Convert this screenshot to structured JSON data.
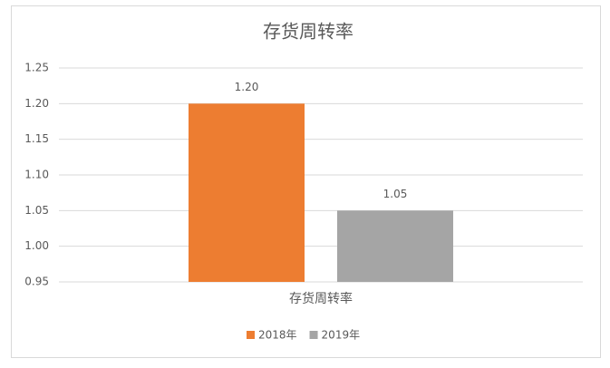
{
  "chart_data": {
    "type": "bar",
    "title": "存货周转率",
    "categories": [
      "存货周转率"
    ],
    "series": [
      {
        "name": "2018年",
        "color": "#ED7D31",
        "values": [
          1.2
        ],
        "value_labels": [
          "1.20"
        ]
      },
      {
        "name": "2019年",
        "color": "#A5A5A5",
        "values": [
          1.05
        ],
        "value_labels": [
          "1.05"
        ]
      }
    ],
    "ylim": [
      0.95,
      1.25
    ],
    "yticks": [
      0.95,
      {
        "value": 1,
        "label": "1.00"
      },
      1.05,
      {
        "value": 1.1,
        "label": "1.10"
      },
      1.15,
      {
        "value": 1.2,
        "label": "1.20"
      },
      1.25
    ],
    "grid": true,
    "legend": "bottom"
  }
}
